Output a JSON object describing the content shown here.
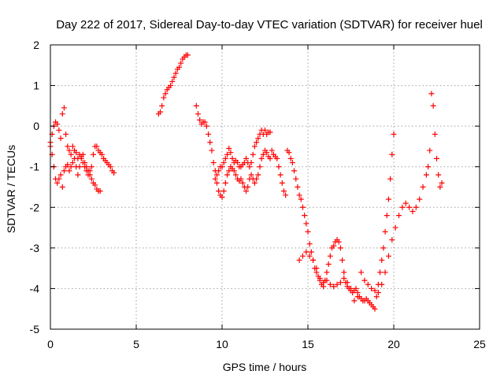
{
  "chart_data": {
    "type": "scatter",
    "title": "Day 222 of 2017, Sidereal Day-to-day VTEC variation (SDTVAR) for receiver huel",
    "xlabel": "GPS time / hours",
    "ylabel": "SDTVAR / TECUs",
    "xlim": [
      0,
      25
    ],
    "ylim": [
      -5,
      2
    ],
    "xticks": [
      0,
      5,
      10,
      15,
      20,
      25
    ],
    "yticks": [
      -5,
      -4,
      -3,
      -2,
      -1,
      0,
      1,
      2
    ],
    "xtick_labels": [
      "0",
      "5",
      "10",
      "15",
      "20",
      "25"
    ],
    "ytick_labels": [
      "-5",
      "-4",
      "-3",
      "-2",
      "-1",
      "0",
      "1",
      "2"
    ],
    "grid": true,
    "marker": "plus",
    "color": "#ff0000",
    "series": [
      {
        "name": "SDTVAR",
        "x": [
          0.0,
          0.1,
          0.2,
          0.3,
          0.4,
          0.5,
          0.6,
          0.7,
          0.8,
          0.9,
          1.0,
          1.1,
          1.2,
          1.3,
          1.4,
          1.5,
          1.6,
          1.7,
          1.8,
          1.9,
          2.0,
          2.1,
          2.2,
          2.3,
          2.4,
          2.5,
          2.6,
          2.7,
          2.8,
          2.9,
          3.0,
          3.1,
          3.2,
          3.3,
          3.4,
          3.5,
          3.6,
          3.7,
          0.0,
          0.1,
          0.2,
          0.3,
          0.4,
          0.5,
          0.6,
          0.7,
          0.8,
          0.9,
          1.0,
          1.1,
          1.2,
          1.3,
          1.4,
          1.5,
          1.6,
          1.7,
          1.8,
          1.9,
          2.0,
          2.1,
          2.2,
          2.3,
          2.4,
          2.5,
          2.6,
          2.7,
          2.8,
          2.9,
          6.3,
          6.4,
          6.5,
          6.6,
          6.7,
          6.8,
          6.9,
          7.0,
          7.1,
          7.2,
          7.3,
          7.4,
          7.5,
          7.6,
          7.7,
          7.8,
          7.9,
          8.0,
          8.5,
          8.6,
          8.7,
          8.8,
          8.9,
          9.0,
          9.1,
          9.2,
          9.3,
          9.4,
          9.5,
          9.6,
          9.7,
          9.8,
          9.9,
          10.0,
          10.1,
          10.2,
          10.3,
          10.4,
          10.5,
          10.6,
          10.7,
          10.8,
          10.9,
          11.0,
          11.1,
          11.2,
          11.3,
          11.4,
          11.5,
          11.6,
          11.7,
          11.8,
          11.9,
          12.0,
          12.1,
          12.2,
          12.3,
          12.4,
          12.5,
          12.6,
          12.7,
          12.8,
          12.9,
          13.0,
          13.1,
          13.2,
          13.3,
          13.4,
          13.5,
          13.6,
          13.7,
          9.6,
          9.7,
          9.8,
          9.9,
          10.0,
          10.1,
          10.2,
          10.3,
          10.4,
          10.5,
          10.6,
          10.7,
          10.8,
          10.9,
          11.0,
          11.1,
          11.2,
          11.3,
          11.4,
          11.5,
          11.6,
          11.7,
          11.8,
          11.9,
          12.0,
          12.1,
          12.2,
          12.3,
          12.4,
          12.5,
          12.6,
          12.7,
          12.8,
          13.8,
          13.9,
          14.0,
          14.1,
          14.2,
          14.3,
          14.4,
          14.5,
          14.6,
          14.7,
          14.8,
          14.9,
          15.0,
          15.1,
          15.2,
          15.3,
          15.4,
          15.5,
          15.6,
          15.7,
          15.8,
          15.9,
          16.0,
          16.1,
          16.2,
          16.3,
          16.4,
          16.5,
          16.6,
          16.7,
          16.8,
          16.9,
          17.0,
          17.1,
          17.2,
          17.3,
          17.4,
          17.5,
          17.6,
          17.7,
          17.8,
          17.9,
          18.0,
          18.1,
          18.2,
          18.3,
          18.4,
          18.5,
          18.6,
          18.7,
          18.8,
          18.9,
          19.0,
          19.1,
          19.2,
          19.3,
          19.4,
          19.5,
          19.6,
          19.7,
          19.8,
          19.9,
          20.0,
          14.5,
          14.7,
          14.9,
          15.1,
          15.3,
          15.5,
          15.7,
          15.9,
          16.1,
          16.3,
          16.5,
          16.7,
          16.9,
          17.1,
          17.3,
          17.5,
          17.7,
          17.9,
          18.1,
          18.3,
          18.5,
          18.7,
          18.9,
          19.1,
          19.3,
          19.5,
          19.7,
          19.9,
          20.1,
          20.3,
          20.5,
          20.7,
          20.9,
          21.1,
          21.3,
          21.5,
          21.7,
          21.9,
          22.0,
          22.1,
          22.2,
          22.3,
          22.4,
          22.5,
          22.6,
          22.7,
          22.8
        ],
        "y": [
          -0.4,
          -0.2,
          0.0,
          0.1,
          0.05,
          -0.1,
          -0.3,
          0.3,
          0.45,
          -0.2,
          -0.5,
          -0.6,
          -0.7,
          -0.5,
          -0.6,
          -0.65,
          -0.8,
          -0.7,
          -0.75,
          -0.9,
          -1.0,
          -1.1,
          -1.2,
          -1.1,
          -1.0,
          -0.7,
          -0.5,
          -0.5,
          -0.6,
          -0.65,
          -0.7,
          -0.8,
          -0.85,
          -0.9,
          -0.95,
          -1.0,
          -1.1,
          -1.15,
          -0.5,
          -0.7,
          -1.0,
          -1.3,
          -1.4,
          -1.3,
          -1.2,
          -1.5,
          -1.1,
          -1.0,
          -0.95,
          -1.1,
          -1.0,
          -0.9,
          -0.8,
          -1.0,
          -1.2,
          -1.0,
          -0.8,
          -0.7,
          -0.9,
          -1.0,
          -1.1,
          -1.2,
          -1.3,
          -1.4,
          -1.45,
          -1.55,
          -1.6,
          -1.6,
          0.3,
          0.35,
          0.5,
          0.7,
          0.8,
          0.9,
          0.95,
          1.0,
          1.1,
          1.2,
          1.3,
          1.4,
          1.45,
          1.55,
          1.65,
          1.7,
          1.75,
          1.75,
          0.5,
          0.3,
          0.15,
          0.05,
          0.1,
          0.1,
          0.0,
          -0.2,
          -0.4,
          -0.6,
          -0.9,
          -1.1,
          -1.2,
          -1.1,
          -1.0,
          -1.0,
          -0.9,
          -0.8,
          -0.7,
          -0.55,
          -0.65,
          -0.8,
          -0.9,
          -0.85,
          -0.9,
          -1.0,
          -1.0,
          -0.95,
          -0.9,
          -0.8,
          -0.9,
          -1.0,
          -0.9,
          -0.7,
          -0.5,
          -0.4,
          -0.3,
          -0.2,
          -0.1,
          -0.2,
          -0.1,
          -0.2,
          -0.15,
          -0.15,
          -0.6,
          -0.7,
          -0.75,
          -0.8,
          -1.0,
          -1.2,
          -1.4,
          -1.6,
          -1.7,
          -1.3,
          -1.4,
          -1.6,
          -1.7,
          -1.75,
          -1.6,
          -1.4,
          -1.2,
          -1.1,
          -1.0,
          -1.05,
          -1.1,
          -1.2,
          -1.3,
          -1.35,
          -1.3,
          -1.4,
          -1.5,
          -1.6,
          -1.5,
          -1.3,
          -1.2,
          -1.3,
          -1.4,
          -1.3,
          -1.2,
          -1.0,
          -0.8,
          -0.7,
          -0.6,
          -0.65,
          -0.75,
          -0.8,
          -0.6,
          -0.65,
          -0.8,
          -0.9,
          -1.1,
          -1.3,
          -1.5,
          -1.7,
          -1.8,
          -2.0,
          -2.2,
          -2.4,
          -2.6,
          -2.9,
          -3.1,
          -3.3,
          -3.5,
          -3.6,
          -3.7,
          -3.8,
          -3.9,
          -3.95,
          -3.8,
          -3.6,
          -3.4,
          -3.2,
          -3.0,
          -2.95,
          -2.85,
          -2.8,
          -2.85,
          -3.0,
          -3.3,
          -3.6,
          -3.85,
          -3.95,
          -4.0,
          -4.05,
          -4.1,
          -4.05,
          -4.0,
          -4.1,
          -4.2,
          -4.25,
          -4.3,
          -4.3,
          -4.25,
          -4.3,
          -4.35,
          -4.4,
          -4.45,
          -4.5,
          -4.2,
          -3.9,
          -3.6,
          -3.3,
          -3.0,
          -2.6,
          -2.2,
          -1.8,
          -1.3,
          -0.7,
          -0.2,
          -3.3,
          -3.2,
          -3.1,
          -3.2,
          -3.3,
          -3.5,
          -3.75,
          -3.85,
          -3.8,
          -3.9,
          -3.95,
          -3.9,
          -3.85,
          -3.75,
          -3.85,
          -4.0,
          -4.3,
          -4.2,
          -3.6,
          -3.8,
          -3.9,
          -4.0,
          -4.05,
          -4.1,
          -3.9,
          -3.6,
          -3.2,
          -2.8,
          -2.5,
          -2.2,
          -2.0,
          -1.9,
          -2.0,
          -2.1,
          -2.0,
          -1.8,
          -1.5,
          -1.2,
          -1.0,
          -0.6,
          0.8,
          0.5,
          -0.2,
          -0.8,
          -1.2,
          -1.5,
          -1.4
        ]
      }
    ]
  }
}
